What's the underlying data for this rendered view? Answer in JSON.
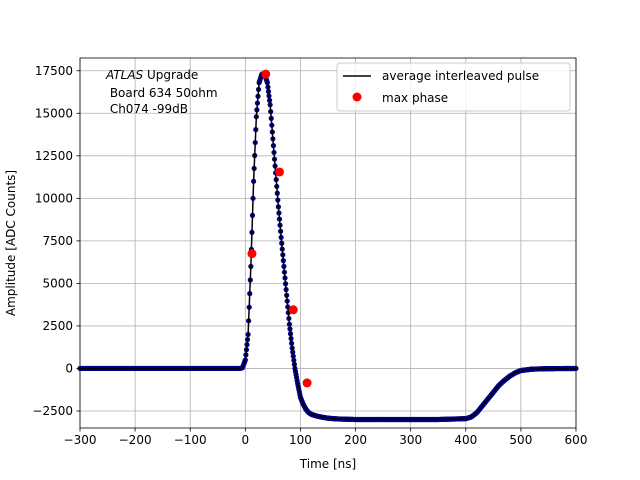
{
  "chart_data": {
    "type": "scatter",
    "xlabel": "Time [ns]",
    "ylabel": "Amplitude [ADC Counts]",
    "xlim": [
      -300,
      600
    ],
    "ylim": [
      -3500,
      18250
    ],
    "xticks": [
      -300,
      -200,
      -100,
      0,
      100,
      200,
      300,
      400,
      500,
      600
    ],
    "xtick_labels": [
      "−300",
      "−200",
      "−100",
      "0",
      "100",
      "200",
      "300",
      "400",
      "500",
      "600"
    ],
    "yticks": [
      -2500,
      0,
      2500,
      5000,
      7500,
      10000,
      12500,
      15000,
      17500
    ],
    "ytick_labels": [
      "−2500",
      "0",
      "2500",
      "5000",
      "7500",
      "10000",
      "12500",
      "15000",
      "17500"
    ],
    "grid": true,
    "legend_position": "top-right",
    "annotation": {
      "line1_italic": "ATLAS",
      "line1_rest": " Upgrade",
      "line2": " Board 634 50ohm",
      "line3": " Ch074 -99dB"
    },
    "series": [
      {
        "name": "average interleaved pulse",
        "kind": "line+points",
        "line_color": "#000000",
        "point_color": "#00008b",
        "x": [
          -300,
          -275,
          -250,
          -225,
          -200,
          -175,
          -150,
          -125,
          -100,
          -75,
          -50,
          -25,
          -10,
          -5,
          0,
          5,
          10,
          15,
          20,
          25,
          30,
          35,
          40,
          45,
          50,
          55,
          60,
          65,
          70,
          75,
          80,
          85,
          90,
          95,
          100,
          105,
          110,
          115,
          120,
          125,
          130,
          140,
          150,
          160,
          170,
          180,
          200,
          250,
          300,
          350,
          400,
          410,
          420,
          430,
          440,
          450,
          460,
          470,
          480,
          490,
          500,
          520,
          550,
          600
        ],
        "y": [
          0,
          0,
          0,
          0,
          0,
          0,
          0,
          0,
          0,
          0,
          0,
          0,
          0,
          50,
          500,
          2000,
          6000,
          11000,
          14800,
          16800,
          17300,
          17300,
          16800,
          15500,
          13500,
          11500,
          9500,
          7700,
          6000,
          4300,
          2600,
          1200,
          0,
          -900,
          -1700,
          -2100,
          -2400,
          -2600,
          -2700,
          -2750,
          -2800,
          -2870,
          -2920,
          -2950,
          -2970,
          -2980,
          -3000,
          -3000,
          -3000,
          -3000,
          -2950,
          -2850,
          -2600,
          -2200,
          -1800,
          -1400,
          -1000,
          -700,
          -450,
          -250,
          -120,
          -40,
          -10,
          0
        ]
      },
      {
        "name": "max phase",
        "kind": "points",
        "color": "#ff0000",
        "x": [
          12,
          37,
          62,
          87,
          112
        ],
        "y": [
          6750,
          17300,
          11550,
          3450,
          -850
        ]
      }
    ]
  }
}
